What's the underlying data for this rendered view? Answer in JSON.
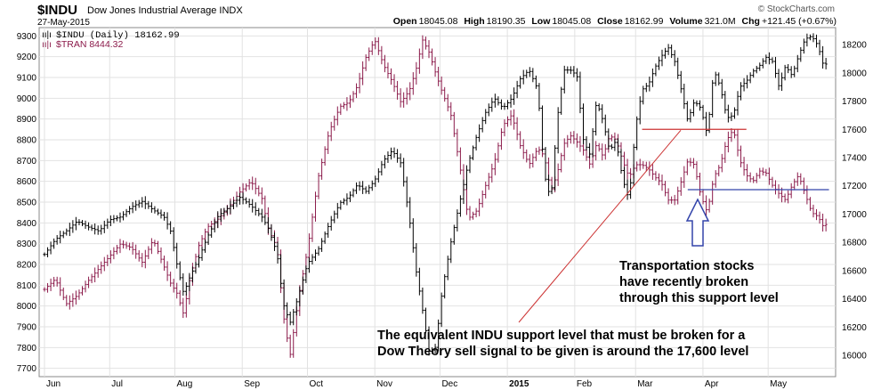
{
  "header": {
    "symbol": "$INDU",
    "name": "Dow Jones Industrial Average",
    "exchange": "INDX",
    "date": "27-May-2015",
    "copyright": "© StockCharts.com",
    "stats": [
      {
        "label": "Open",
        "value": "18045.08"
      },
      {
        "label": "High",
        "value": "18190.35"
      },
      {
        "label": "Low",
        "value": "18045.08"
      },
      {
        "label": "Close",
        "value": "18162.99"
      },
      {
        "label": "Volume",
        "value": "321.0M"
      },
      {
        "label": "Chg",
        "value": "+121.45 (+0.67%)"
      }
    ]
  },
  "legend": {
    "indu": "$INDU (Daily) 18162.99",
    "tran": "$TRAN 8444.32"
  },
  "annotations": {
    "transport_note": [
      "Transportation stocks",
      "have recently broken",
      "through this support level"
    ],
    "indu_note": [
      "The equivalent INDU support level that must be broken for a",
      "Dow Theory sell signal to be given is around the 17,600 level"
    ]
  },
  "colors": {
    "indu": "#000000",
    "tran": "#8b1a4a",
    "grid": "#e2e2e2",
    "support_line": "#cc3333",
    "tran_support_line": "#3344aa",
    "arrow": "#3344aa"
  },
  "chart_data": {
    "type": "line",
    "x_labels": [
      "Jun",
      "Jul",
      "Aug",
      "Sep",
      "Oct",
      "Nov",
      "Dec",
      "2015",
      "Feb",
      "Mar",
      "Apr",
      "May"
    ],
    "y_left": {
      "series": "$TRAN",
      "ticks": [
        7700,
        7800,
        7900,
        8000,
        8100,
        8200,
        8300,
        8400,
        8500,
        8600,
        8700,
        8800,
        8900,
        9000,
        9100,
        9200,
        9300
      ],
      "range": [
        7660,
        9340
      ]
    },
    "y_right": {
      "series": "$INDU",
      "ticks": [
        16000,
        16200,
        16400,
        16600,
        16800,
        17000,
        17200,
        17400,
        17600,
        17800,
        18000,
        18200
      ],
      "range": [
        15850,
        18320
      ]
    },
    "grid": true,
    "legend_position": "top-left",
    "series": [
      {
        "name": "$INDU",
        "axis": "right",
        "style": "ohlc-bars",
        "points": [
          [
            0,
            16715
          ],
          [
            5,
            16820
          ],
          [
            10,
            16880
          ],
          [
            15,
            16950
          ],
          [
            20,
            16910
          ],
          [
            25,
            16880
          ],
          [
            30,
            16960
          ],
          [
            35,
            16980
          ],
          [
            40,
            17050
          ],
          [
            45,
            17090
          ],
          [
            50,
            17030
          ],
          [
            55,
            16980
          ],
          [
            58,
            16880
          ],
          [
            61,
            16640
          ],
          [
            64,
            16440
          ],
          [
            67,
            16560
          ],
          [
            71,
            16690
          ],
          [
            75,
            16840
          ],
          [
            80,
            16990
          ],
          [
            85,
            17050
          ],
          [
            90,
            17120
          ],
          [
            95,
            17060
          ],
          [
            100,
            16980
          ],
          [
            103,
            16900
          ],
          [
            107,
            16720
          ],
          [
            110,
            16360
          ],
          [
            113,
            16230
          ],
          [
            117,
            16430
          ],
          [
            121,
            16650
          ],
          [
            126,
            16750
          ],
          [
            131,
            16930
          ],
          [
            136,
            17080
          ],
          [
            140,
            17120
          ],
          [
            144,
            17210
          ],
          [
            148,
            17160
          ],
          [
            152,
            17240
          ],
          [
            156,
            17380
          ],
          [
            160,
            17450
          ],
          [
            164,
            17360
          ],
          [
            168,
            16960
          ],
          [
            171,
            16600
          ],
          [
            174,
            16320
          ],
          [
            177,
            16020
          ],
          [
            180,
            16060
          ],
          [
            183,
            16460
          ],
          [
            187,
            16800
          ],
          [
            191,
            17080
          ],
          [
            195,
            17360
          ],
          [
            199,
            17560
          ],
          [
            203,
            17720
          ],
          [
            207,
            17820
          ],
          [
            211,
            17750
          ],
          [
            215,
            17820
          ],
          [
            219,
            17960
          ],
          [
            223,
            18020
          ],
          [
            227,
            17880
          ],
          [
            230,
            17280
          ],
          [
            233,
            17100
          ],
          [
            236,
            17680
          ],
          [
            239,
            18020
          ],
          [
            242,
            18020
          ],
          [
            245,
            17980
          ],
          [
            248,
            17520
          ],
          [
            251,
            17420
          ],
          [
            254,
            17800
          ],
          [
            257,
            17660
          ],
          [
            260,
            17450
          ],
          [
            263,
            17520
          ],
          [
            266,
            17250
          ],
          [
            269,
            17100
          ],
          [
            272,
            17620
          ],
          [
            275,
            17880
          ],
          [
            278,
            17920
          ],
          [
            281,
            18040
          ],
          [
            284,
            18120
          ],
          [
            287,
            18180
          ],
          [
            290,
            18080
          ],
          [
            293,
            17880
          ],
          [
            296,
            17660
          ],
          [
            299,
            17800
          ],
          [
            302,
            17750
          ],
          [
            305,
            17560
          ],
          [
            308,
            18020
          ],
          [
            311,
            17900
          ],
          [
            314,
            17680
          ],
          [
            317,
            17700
          ],
          [
            320,
            17900
          ],
          [
            323,
            17940
          ],
          [
            326,
            18010
          ],
          [
            329,
            18050
          ],
          [
            332,
            18110
          ],
          [
            335,
            18080
          ],
          [
            338,
            17900
          ],
          [
            341,
            18050
          ],
          [
            344,
            17980
          ],
          [
            347,
            18120
          ],
          [
            350,
            18240
          ],
          [
            353,
            18260
          ],
          [
            356,
            18190
          ],
          [
            359,
            18020
          ],
          [
            361,
            18160
          ]
        ]
      },
      {
        "name": "$TRAN",
        "axis": "left",
        "style": "ohlc-bars",
        "points": [
          [
            0,
            8080
          ],
          [
            5,
            8130
          ],
          [
            10,
            8010
          ],
          [
            15,
            8050
          ],
          [
            20,
            8120
          ],
          [
            25,
            8180
          ],
          [
            30,
            8240
          ],
          [
            35,
            8300
          ],
          [
            40,
            8280
          ],
          [
            45,
            8210
          ],
          [
            50,
            8320
          ],
          [
            55,
            8190
          ],
          [
            58,
            8110
          ],
          [
            61,
            8060
          ],
          [
            64,
            7960
          ],
          [
            67,
            8140
          ],
          [
            71,
            8290
          ],
          [
            75,
            8380
          ],
          [
            80,
            8420
          ],
          [
            85,
            8480
          ],
          [
            90,
            8550
          ],
          [
            95,
            8600
          ],
          [
            100,
            8520
          ],
          [
            103,
            8370
          ],
          [
            107,
            8280
          ],
          [
            110,
            7950
          ],
          [
            113,
            7760
          ],
          [
            117,
            8050
          ],
          [
            121,
            8270
          ],
          [
            126,
            8620
          ],
          [
            131,
            8840
          ],
          [
            136,
            8960
          ],
          [
            140,
            8980
          ],
          [
            144,
            9060
          ],
          [
            148,
            9200
          ],
          [
            152,
            9280
          ],
          [
            156,
            9160
          ],
          [
            160,
            9080
          ],
          [
            164,
            8980
          ],
          [
            168,
            9040
          ],
          [
            171,
            9140
          ],
          [
            174,
            9280
          ],
          [
            177,
            9220
          ],
          [
            180,
            9120
          ],
          [
            183,
            9030
          ],
          [
            187,
            8920
          ],
          [
            191,
            8680
          ],
          [
            195,
            8420
          ],
          [
            199,
            8460
          ],
          [
            203,
            8580
          ],
          [
            207,
            8690
          ],
          [
            211,
            8870
          ],
          [
            215,
            8920
          ],
          [
            219,
            8770
          ],
          [
            223,
            8680
          ],
          [
            227,
            8760
          ],
          [
            230,
            8720
          ],
          [
            233,
            8550
          ],
          [
            236,
            8640
          ],
          [
            239,
            8780
          ],
          [
            242,
            8820
          ],
          [
            245,
            8790
          ],
          [
            248,
            8750
          ],
          [
            251,
            8680
          ],
          [
            254,
            8780
          ],
          [
            257,
            8720
          ],
          [
            260,
            8820
          ],
          [
            263,
            8800
          ],
          [
            266,
            8700
          ],
          [
            269,
            8620
          ],
          [
            272,
            8680
          ],
          [
            275,
            8680
          ],
          [
            278,
            8660
          ],
          [
            281,
            8620
          ],
          [
            284,
            8590
          ],
          [
            287,
            8510
          ],
          [
            290,
            8510
          ],
          [
            293,
            8600
          ],
          [
            296,
            8700
          ],
          [
            299,
            8680
          ],
          [
            302,
            8530
          ],
          [
            305,
            8450
          ],
          [
            308,
            8620
          ],
          [
            311,
            8680
          ],
          [
            314,
            8800
          ],
          [
            317,
            8850
          ],
          [
            320,
            8700
          ],
          [
            323,
            8630
          ],
          [
            326,
            8600
          ],
          [
            329,
            8650
          ],
          [
            332,
            8640
          ],
          [
            335,
            8580
          ],
          [
            338,
            8540
          ],
          [
            341,
            8510
          ],
          [
            344,
            8580
          ],
          [
            347,
            8630
          ],
          [
            350,
            8540
          ],
          [
            353,
            8450
          ],
          [
            356,
            8430
          ],
          [
            359,
            8370
          ],
          [
            361,
            8444
          ]
        ]
      }
    ],
    "reference_lines": [
      {
        "label": "INDU support",
        "axis": "right",
        "value": 17600,
        "x_from": 275,
        "x_to": 323
      },
      {
        "label": "TRAN support",
        "axis": "left",
        "value": 8560,
        "x_from": 296,
        "x_to": 361
      }
    ]
  }
}
